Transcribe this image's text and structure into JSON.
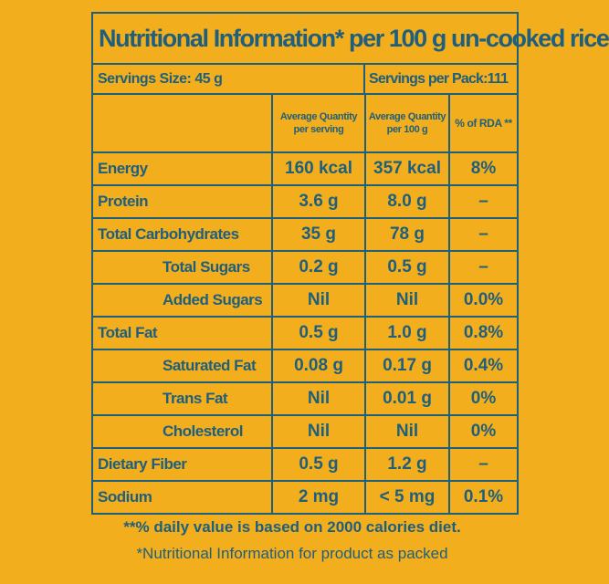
{
  "title": "Nutritional Information* per 100 g un-cooked rice",
  "servings_size": "Servings Size: 45 g",
  "servings_per_pack": "Servings per Pack:111",
  "headers": {
    "per_serving": [
      "Average Quantity",
      "per serving"
    ],
    "per_100g": [
      "Average Quantity",
      "per 100 g"
    ],
    "rda": "% of RDA **"
  },
  "rows": [
    {
      "name": "Energy",
      "per_serving": "160 kcal",
      "per_100g": "357 kcal",
      "rda": "8%"
    },
    {
      "name": "Protein",
      "per_serving": "3.6 g",
      "per_100g": "8.0 g",
      "rda": "–"
    },
    {
      "name": "Total Carbohydrates",
      "per_serving": "35 g",
      "per_100g": "78 g",
      "rda": "–"
    },
    {
      "name": "Total Sugars",
      "per_serving": "0.2 g",
      "per_100g": "0.5 g",
      "rda": "–"
    },
    {
      "name": "Added Sugars",
      "per_serving": "Nil",
      "per_100g": "Nil",
      "rda": "0.0%"
    },
    {
      "name": "Total Fat",
      "per_serving": "0.5 g",
      "per_100g": "1.0 g",
      "rda": "0.8%"
    },
    {
      "name": "Saturated Fat",
      "per_serving": "0.08 g",
      "per_100g": "0.17 g",
      "rda": "0.4%"
    },
    {
      "name": "Trans Fat",
      "per_serving": "Nil",
      "per_100g": "0.01 g",
      "rda": "0%"
    },
    {
      "name": "Cholesterol",
      "per_serving": "Nil",
      "per_100g": "Nil",
      "rda": "0%"
    },
    {
      "name": "Dietary Fiber",
      "per_serving": "0.5 g",
      "per_100g": "1.2 g",
      "rda": "–"
    },
    {
      "name": "Sodium",
      "per_serving": "2 mg",
      "per_100g": "< 5 mg",
      "rda": "0.1%"
    }
  ],
  "footnote_rda": "**% daily value is based on 2000 calories diet.",
  "footnote_info": "*Nutritional Information for product as packed",
  "colors": {
    "background": "#F2AE1C",
    "ink": "#1F5F7E"
  }
}
